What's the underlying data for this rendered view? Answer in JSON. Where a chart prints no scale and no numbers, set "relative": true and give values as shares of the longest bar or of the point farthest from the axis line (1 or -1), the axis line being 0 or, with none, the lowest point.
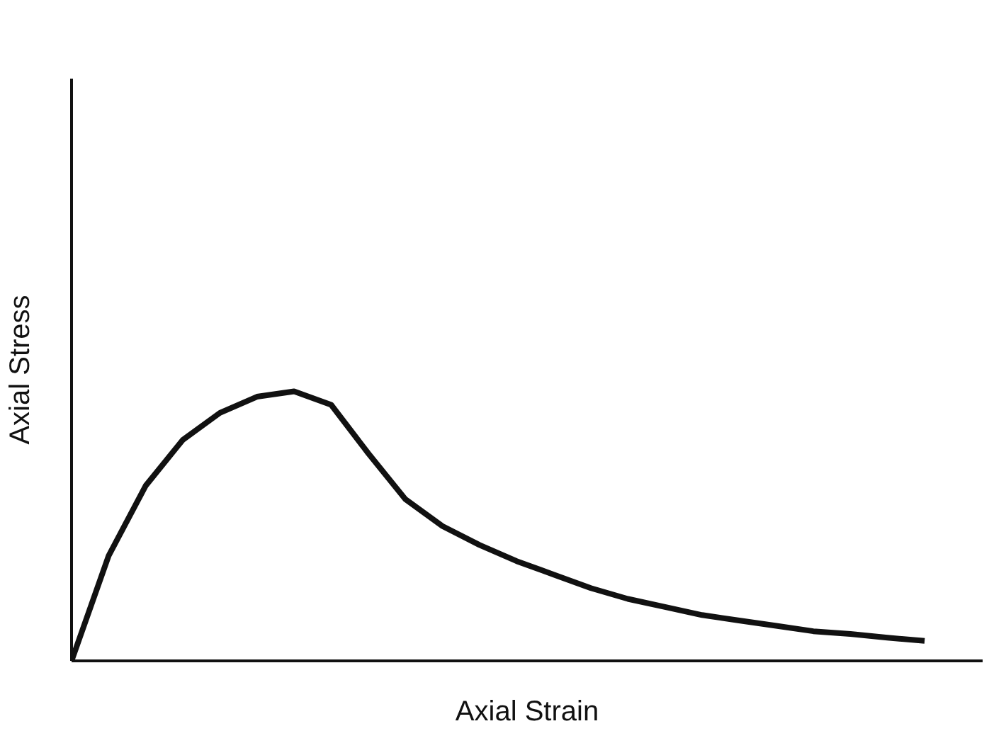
{
  "chart_data": {
    "type": "line",
    "relative": true,
    "xlabel": "Axial Strain",
    "ylabel": "Axial Stress",
    "categories": [
      null,
      null,
      null,
      null,
      null,
      null,
      null,
      null,
      null,
      null,
      null,
      null,
      null,
      null,
      null,
      null,
      null,
      null,
      null,
      null,
      null,
      null,
      null,
      null
    ],
    "series": [
      {
        "color": "#111111",
        "values": [
          0,
          0.39,
          0.65,
          0.82,
          0.92,
          0.98,
          1.0,
          0.95,
          0.77,
          0.6,
          0.5,
          0.43,
          0.37,
          0.32,
          0.27,
          0.23,
          0.2,
          0.17,
          0.15,
          0.13,
          0.11,
          0.1,
          0.086,
          0.074
        ]
      }
    ]
  }
}
